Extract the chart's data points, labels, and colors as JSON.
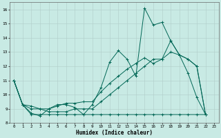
{
  "xlabel": "Humidex (Indice chaleur)",
  "background_color": "#c8eae4",
  "grid_color": "#b0ccc8",
  "line_color": "#006655",
  "xlim": [
    -0.5,
    23.5
  ],
  "ylim": [
    8,
    16.5
  ],
  "xticks": [
    0,
    1,
    2,
    3,
    4,
    5,
    6,
    7,
    8,
    9,
    10,
    11,
    12,
    13,
    14,
    15,
    16,
    17,
    18,
    19,
    20,
    21,
    22,
    23
  ],
  "yticks": [
    8,
    9,
    10,
    11,
    12,
    13,
    14,
    15,
    16
  ],
  "series": [
    {
      "x": [
        0,
        1,
        2,
        3,
        4,
        5,
        6,
        7,
        8,
        9,
        10,
        11,
        12,
        13,
        14,
        15,
        16,
        17,
        18,
        19,
        20,
        21,
        22
      ],
      "y": [
        11,
        9.3,
        8.7,
        8.5,
        9.0,
        9.3,
        9.3,
        9.1,
        8.6,
        9.3,
        10.5,
        12.3,
        13.1,
        12.5,
        11.3,
        16.1,
        14.9,
        15.1,
        13.8,
        12.8,
        11.5,
        9.8,
        8.6
      ]
    },
    {
      "x": [
        0,
        1,
        2,
        3,
        4,
        5,
        6,
        7,
        8,
        9,
        10,
        11,
        12,
        13,
        14,
        15,
        16,
        17,
        18,
        19,
        20,
        21,
        22
      ],
      "y": [
        11,
        9.3,
        8.6,
        8.6,
        8.6,
        8.6,
        8.6,
        8.6,
        8.6,
        8.6,
        8.6,
        8.6,
        8.6,
        8.6,
        8.6,
        8.6,
        8.6,
        8.6,
        8.6,
        8.6,
        8.6,
        8.6,
        8.6
      ]
    },
    {
      "x": [
        0,
        1,
        2,
        3,
        4,
        5,
        6,
        7,
        8,
        9,
        10,
        11,
        12,
        13,
        14,
        15,
        16,
        17,
        18,
        19,
        20,
        21,
        22
      ],
      "y": [
        11,
        9.3,
        9.2,
        9.0,
        9.0,
        9.2,
        9.4,
        9.4,
        9.5,
        9.5,
        10.2,
        10.8,
        11.3,
        11.8,
        12.2,
        12.6,
        12.2,
        12.5,
        13.8,
        12.8,
        12.5,
        12.0,
        8.6
      ]
    },
    {
      "x": [
        0,
        1,
        2,
        3,
        4,
        5,
        6,
        7,
        8,
        9,
        10,
        11,
        12,
        13,
        14,
        15,
        16,
        17,
        18,
        19,
        20,
        21,
        22
      ],
      "y": [
        11,
        9.3,
        9.0,
        9.0,
        8.8,
        8.8,
        8.8,
        9.0,
        9.0,
        9.0,
        9.5,
        10.0,
        10.5,
        11.0,
        11.5,
        12.0,
        12.5,
        12.5,
        13.0,
        12.8,
        12.5,
        12.0,
        8.6
      ]
    }
  ]
}
